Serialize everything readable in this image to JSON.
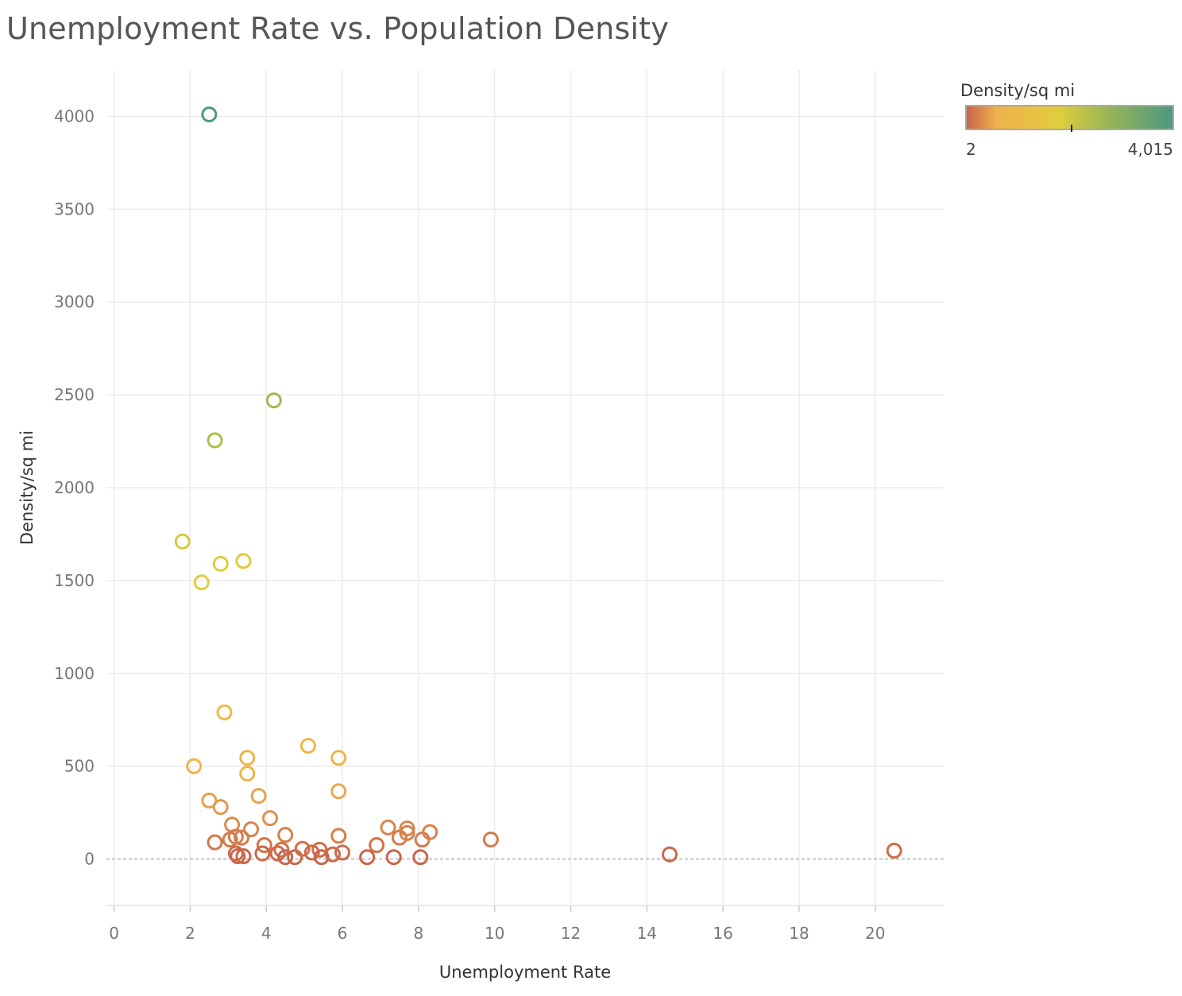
{
  "chart_data": {
    "type": "scatter",
    "title": "Unemployment Rate vs. Population Density",
    "xlabel": "Unemployment Rate",
    "ylabel": "Density/sq mi",
    "xlim": [
      -0.2,
      21.8
    ],
    "ylim": [
      -250,
      4250
    ],
    "xticks": [
      "0",
      "2",
      "4",
      "6",
      "8",
      "10",
      "12",
      "14",
      "16",
      "18",
      "20"
    ],
    "yticks": [
      "0",
      "500",
      "1000",
      "1500",
      "2000",
      "2500",
      "3000",
      "3500",
      "4000"
    ],
    "grid": true,
    "marker": "hollow-circle",
    "color_scale": {
      "title": "Density/sq mi",
      "min_label": "2",
      "max_label": "4,015",
      "min": 2,
      "max": 4015,
      "colors": [
        "#c8624a",
        "#f0b24c",
        "#e0cd3d",
        "#8fb25a",
        "#4e9782"
      ]
    },
    "x": [
      2.5,
      4.2,
      2.65,
      1.8,
      2.8,
      3.4,
      2.3,
      2.9,
      2.1,
      3.5,
      3.5,
      5.1,
      5.9,
      5.9,
      2.5,
      2.8,
      3.8,
      4.1,
      3.1,
      3.6,
      2.65,
      3.05,
      3.2,
      3.35,
      3.2,
      3.25,
      3.4,
      3.95,
      3.9,
      4.3,
      4.4,
      4.5,
      4.5,
      4.75,
      4.95,
      5.2,
      5.4,
      5.45,
      5.75,
      5.9,
      6.0,
      6.65,
      6.9,
      7.2,
      7.5,
      7.7,
      7.7,
      7.35,
      8.1,
      8.05,
      8.3,
      9.9,
      14.6,
      20.5
    ],
    "y": [
      4010,
      2470,
      2255,
      1710,
      1590,
      1605,
      1490,
      790,
      500,
      545,
      460,
      610,
      545,
      365,
      315,
      280,
      340,
      220,
      185,
      160,
      90,
      105,
      120,
      115,
      30,
      15,
      15,
      75,
      30,
      30,
      50,
      130,
      10,
      10,
      55,
      35,
      50,
      10,
      25,
      125,
      35,
      10,
      75,
      170,
      115,
      165,
      140,
      10,
      105,
      10,
      145,
      105,
      25,
      45
    ],
    "y_reference_line": 0
  }
}
